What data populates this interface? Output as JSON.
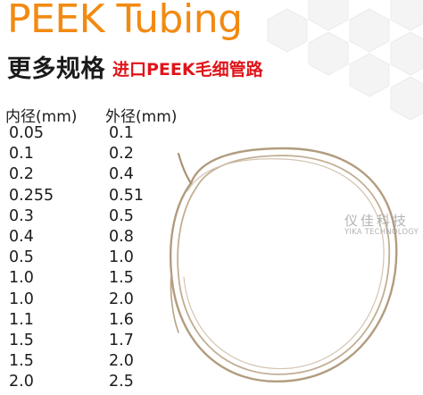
{
  "title": "PEEK Tubing",
  "subtitle": {
    "main": "更多规格",
    "accent": "进口PEEK毛细管路"
  },
  "table": {
    "headers": [
      "内径(mm)",
      "外径(mm)"
    ],
    "rows": [
      [
        "0.05",
        "0.1"
      ],
      [
        "0.1",
        "0.2"
      ],
      [
        "0.2",
        "0.4"
      ],
      [
        "0.255",
        "0.51"
      ],
      [
        "0.3",
        "0.5"
      ],
      [
        "0.4",
        "0.8"
      ],
      [
        "0.5",
        "1.0"
      ],
      [
        "1.0",
        "1.5"
      ],
      [
        "1.0",
        "2.0"
      ],
      [
        "1.1",
        "1.6"
      ],
      [
        "1.5",
        "1.7"
      ],
      [
        "1.5",
        "2.0"
      ],
      [
        "2.0",
        "2.5"
      ]
    ]
  },
  "watermark": {
    "cn": "仪佳科技",
    "en": "YIKA TECHNOLOGY"
  },
  "colors": {
    "title": "#f28a12",
    "accent": "#e0141a",
    "text": "#1c1c1c",
    "tube": "#b59f82",
    "hexagon": "#f3f3f3"
  }
}
